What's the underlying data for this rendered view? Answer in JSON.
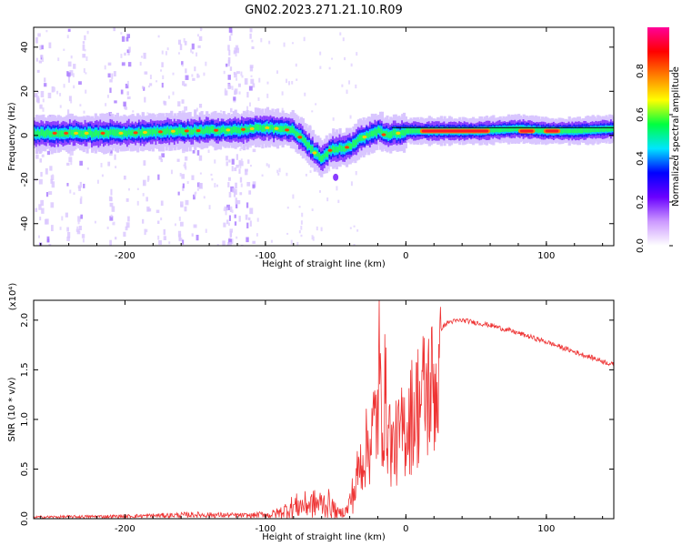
{
  "title": "GN02.2023.271.21.10.R09",
  "chart_data": [
    {
      "type": "heatmap",
      "name": "spectrogram",
      "xlabel": "Height of straight line (km)",
      "ylabel": "Frequency (Hz)",
      "xlim": [
        -265,
        148
      ],
      "ylim": [
        -50,
        49
      ],
      "xticks": [
        -200,
        -100,
        0,
        100
      ],
      "xtick_labels": [
        "-200",
        "-100",
        "0",
        "100"
      ],
      "yticks": [
        -40,
        -20,
        0,
        20,
        40
      ],
      "ytick_labels": [
        "-40",
        "-20",
        "0",
        "20",
        "40"
      ],
      "colorbar": {
        "label": "Normalized spectral amplitude",
        "range": [
          0,
          1
        ],
        "ticks": [
          0.0,
          0.2,
          0.4,
          0.6,
          0.8
        ],
        "tick_labels": [
          "0.0",
          "0.2",
          "0.4",
          "0.6",
          "0.8"
        ],
        "colors": [
          "#ffffff",
          "#cc99ff",
          "#6a00ff",
          "#0000ff",
          "#00e5ff",
          "#00ff40",
          "#ffff00",
          "#ff8000",
          "#ff0000",
          "#ff0099"
        ]
      },
      "ridge": {
        "x": [
          -265,
          -240,
          -200,
          -160,
          -120,
          -100,
          -90,
          -80,
          -72,
          -65,
          -60,
          -55,
          -50,
          -45,
          -40,
          -35,
          -30,
          -25,
          -20,
          -15,
          -10,
          -5,
          0,
          20,
          50,
          80,
          100,
          120,
          148
        ],
        "y": [
          1,
          1,
          1,
          2,
          2.5,
          3.5,
          3,
          2,
          -3,
          -8,
          -11,
          -7,
          -6,
          -6,
          -5,
          -2,
          -1,
          1,
          2,
          0,
          1,
          1,
          2,
          2,
          2,
          3,
          2,
          2,
          3
        ]
      }
    },
    {
      "type": "line",
      "name": "snr",
      "xlabel": "Height of straight line (km)",
      "ylabel": "SNR (10 * v/v)",
      "multiplier": "(x10⁴)",
      "xlim": [
        -265,
        148
      ],
      "ylim": [
        0,
        2.2
      ],
      "xticks": [
        -200,
        -100,
        0,
        100
      ],
      "xtick_labels": [
        "-200",
        "-100",
        "0",
        "100"
      ],
      "yticks": [
        0,
        0.5,
        1.0,
        1.5,
        2.0
      ],
      "ytick_labels": [
        "0.0",
        "0.5",
        "1.0",
        "1.5",
        "2.0"
      ],
      "line_color": "#ee3333",
      "envelope": {
        "x": [
          -265,
          -200,
          -150,
          -110,
          -100,
          -90,
          -80,
          -65,
          -55,
          -48,
          -42,
          -38,
          -35,
          -30,
          -25,
          -20,
          -15,
          -10,
          -5,
          0,
          10,
          20,
          30,
          40,
          60,
          80,
          100,
          120,
          148
        ],
        "y": [
          0.02,
          0.03,
          0.05,
          0.04,
          0.06,
          0.12,
          0.25,
          0.3,
          0.3,
          0.1,
          0.15,
          0.45,
          0.6,
          0.9,
          1.1,
          1.5,
          1.65,
          0.95,
          1.1,
          1.3,
          1.65,
          1.85,
          1.98,
          2.0,
          1.95,
          1.87,
          1.78,
          1.68,
          1.55
        ]
      },
      "peak": {
        "x": -19,
        "y": 2.2
      }
    }
  ]
}
